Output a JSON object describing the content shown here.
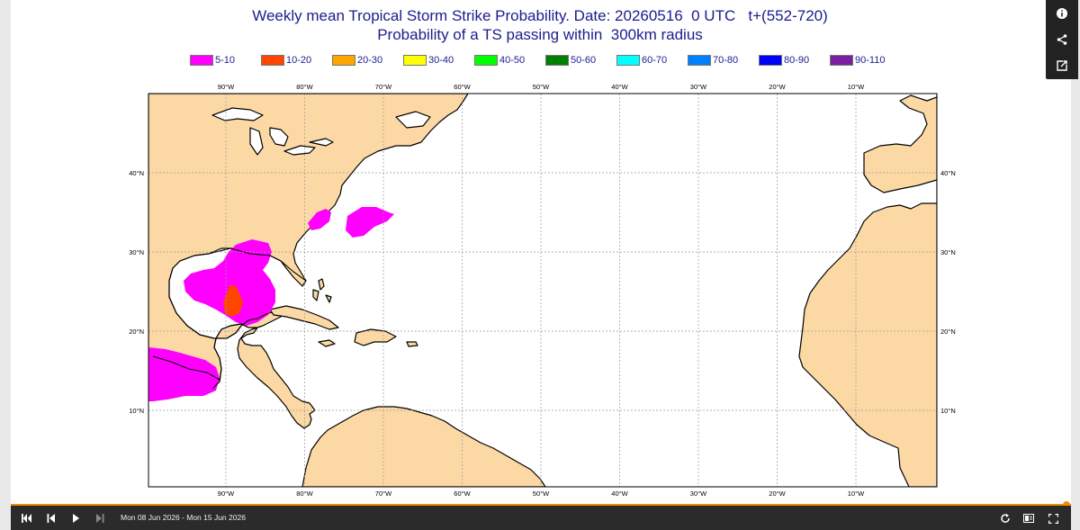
{
  "title": {
    "line1": "Weekly mean Tropical Storm Strike Probability. Date: 20260516  0 UTC   t+(552-720)",
    "line2": "Probability of a TS passing within  300km radius"
  },
  "legend": [
    {
      "label": "5-10",
      "color": "#ff00ff"
    },
    {
      "label": "10-20",
      "color": "#ff4500"
    },
    {
      "label": "20-30",
      "color": "#ffa500"
    },
    {
      "label": "30-40",
      "color": "#ffff00"
    },
    {
      "label": "40-50",
      "color": "#00ff00"
    },
    {
      "label": "50-60",
      "color": "#008000"
    },
    {
      "label": "60-70",
      "color": "#00ffff"
    },
    {
      "label": "70-80",
      "color": "#0080ff"
    },
    {
      "label": "80-90",
      "color": "#0000ff"
    },
    {
      "label": "90-110",
      "color": "#7b1fa2"
    }
  ],
  "map": {
    "lon_labels": [
      "90°W",
      "80°W",
      "70°W",
      "60°W",
      "50°W",
      "40°W",
      "30°W",
      "20°W",
      "10°W"
    ],
    "lat_labels": [
      "40°N",
      "30°N",
      "20°N",
      "10°N"
    ],
    "land_color": "#fcd9a4",
    "ocean_color": "#ffffff"
  },
  "sidebar": {
    "icons": [
      "info-icon",
      "share-icon",
      "export-icon"
    ]
  },
  "player": {
    "date_range": "Mon 08 Jun 2026 - Mon 15 Jun 2026",
    "progress": 1.0,
    "accent": "#f08c00",
    "icons": [
      "skip-to-start-icon",
      "step-back-icon",
      "play-icon",
      "step-forward-icon",
      "loop-icon",
      "compare-icon",
      "fullscreen-icon"
    ]
  }
}
